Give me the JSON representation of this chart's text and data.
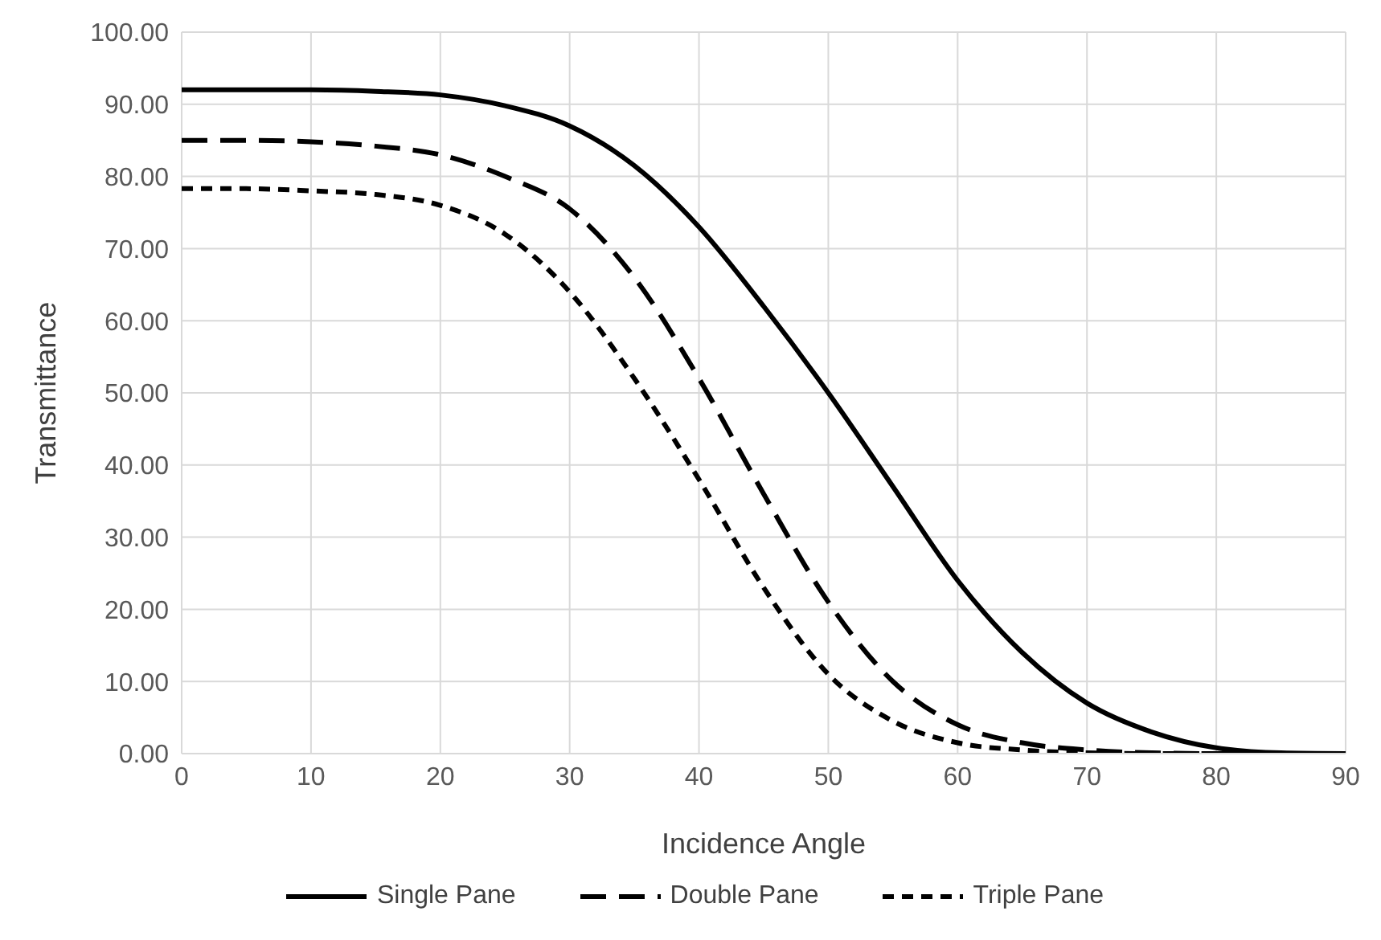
{
  "chart_data": {
    "type": "line",
    "xlabel": "Incidence Angle",
    "ylabel": "Transmittance",
    "x": [
      0,
      5,
      10,
      15,
      20,
      25,
      30,
      35,
      40,
      45,
      50,
      55,
      60,
      65,
      70,
      75,
      80,
      85,
      90
    ],
    "series": [
      {
        "name": "Single Pane",
        "color": "#000000",
        "line_style": "solid",
        "values": [
          92,
          92,
          92,
          91.8,
          91.3,
          89.8,
          87,
          81.5,
          73,
          62,
          50,
          37,
          24,
          14,
          7,
          3,
          0.8,
          0.1,
          0
        ]
      },
      {
        "name": "Double Pane",
        "color": "#000000",
        "line_style": "dashed",
        "values": [
          85,
          85,
          84.8,
          84.2,
          83,
          80,
          75.5,
          66,
          52,
          36,
          21,
          10,
          4,
          1.5,
          0.5,
          0.1,
          0,
          0,
          0
        ]
      },
      {
        "name": "Triple Pane",
        "color": "#000000",
        "line_style": "dashed",
        "values": [
          78.3,
          78.3,
          78,
          77.5,
          76,
          72,
          64,
          52,
          38,
          23,
          11,
          4.5,
          1.5,
          0.5,
          0.1,
          0,
          0,
          0,
          0
        ]
      }
    ],
    "xlim": [
      0,
      90
    ],
    "xticks": [
      0,
      10,
      20,
      30,
      40,
      50,
      60,
      70,
      80,
      90
    ],
    "ylim": [
      0,
      100
    ],
    "yticks": [
      {
        "value": 0,
        "label": "0.00"
      },
      {
        "value": 10,
        "label": "10.00"
      },
      {
        "value": 20,
        "label": "20.00"
      },
      {
        "value": 30,
        "label": "30.00"
      },
      {
        "value": 40,
        "label": "40.00"
      },
      {
        "value": 50,
        "label": "50.00"
      },
      {
        "value": 60,
        "label": "60.00"
      },
      {
        "value": 70,
        "label": "70.00"
      },
      {
        "value": 80,
        "label": "80.00"
      },
      {
        "value": 90,
        "label": "90.00"
      },
      {
        "value": 100,
        "label": "100.00"
      }
    ],
    "grid": true,
    "legend": "bottom",
    "marker": "none"
  }
}
